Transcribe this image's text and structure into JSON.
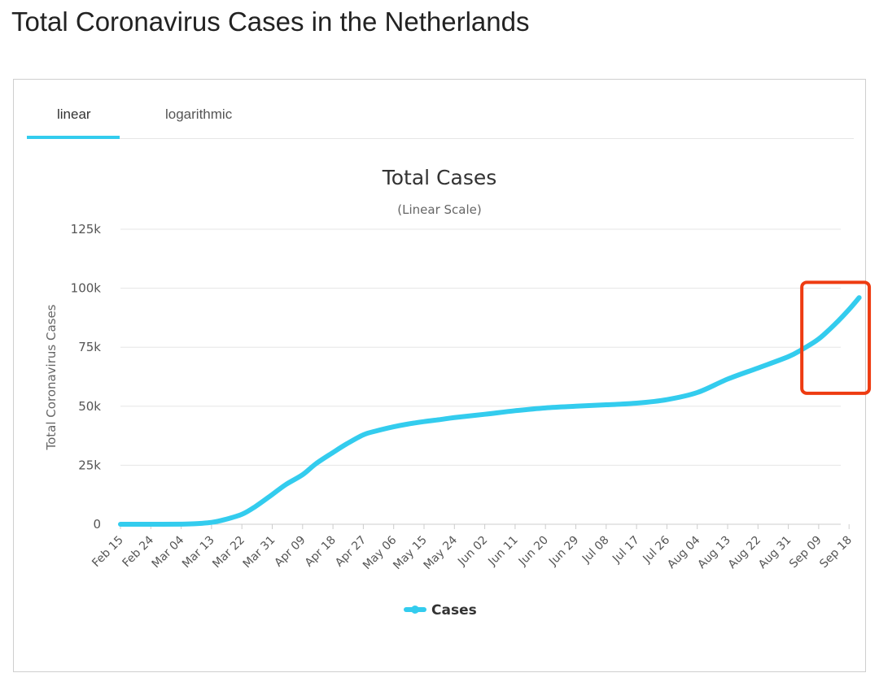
{
  "page": {
    "title": "Total Coronavirus Cases in the Netherlands"
  },
  "tabs": [
    {
      "label": "linear",
      "active": true
    },
    {
      "label": "logarithmic",
      "active": false
    }
  ],
  "colors": {
    "accent": "#33ccee",
    "line": "#33ccee",
    "highlight_box": "#ee3b11",
    "grid": "#e6e6e6",
    "text": "#333333"
  },
  "chart_data": {
    "type": "line",
    "title": "Total Cases",
    "subtitle": "(Linear Scale)",
    "ylabel": "Total Coronavirus Cases",
    "xlabel": "",
    "ylim": [
      0,
      125000
    ],
    "y_ticks": [
      0,
      25000,
      50000,
      75000,
      100000,
      125000
    ],
    "y_tick_labels": [
      "0",
      "25k",
      "50k",
      "75k",
      "100k",
      "125k"
    ],
    "x_tick_labels": [
      "Feb 15",
      "Feb 24",
      "Mar 04",
      "Mar 13",
      "Mar 22",
      "Mar 31",
      "Apr 09",
      "Apr 18",
      "Apr 27",
      "May 06",
      "May 15",
      "May 24",
      "Jun 02",
      "Jun 11",
      "Jun 20",
      "Jun 29",
      "Jul 08",
      "Jul 17",
      "Jul 26",
      "Aug 04",
      "Aug 13",
      "Aug 22",
      "Aug 31",
      "Sep 09",
      "Sep 18"
    ],
    "grid": true,
    "legend": "bottom-center",
    "series": [
      {
        "name": "Cases",
        "color": "#33ccee",
        "points": [
          [
            "Feb 15",
            0
          ],
          [
            "Feb 24",
            0
          ],
          [
            "Mar 04",
            40
          ],
          [
            "Mar 08",
            200
          ],
          [
            "Mar 13",
            800
          ],
          [
            "Mar 17",
            2000
          ],
          [
            "Mar 22",
            4200
          ],
          [
            "Mar 26",
            7500
          ],
          [
            "Mar 31",
            12600
          ],
          [
            "Apr 04",
            16800
          ],
          [
            "Apr 09",
            21000
          ],
          [
            "Apr 13",
            25700
          ],
          [
            "Apr 18",
            30400
          ],
          [
            "Apr 22",
            34000
          ],
          [
            "Apr 27",
            37900
          ],
          [
            "May 01",
            39600
          ],
          [
            "May 06",
            41300
          ],
          [
            "May 10",
            42400
          ],
          [
            "May 15",
            43500
          ],
          [
            "May 20",
            44400
          ],
          [
            "May 24",
            45200
          ],
          [
            "Jun 02",
            46600
          ],
          [
            "Jun 11",
            48100
          ],
          [
            "Jun 20",
            49300
          ],
          [
            "Jun 29",
            50000
          ],
          [
            "Jul 08",
            50600
          ],
          [
            "Jul 17",
            51300
          ],
          [
            "Jul 26",
            52800
          ],
          [
            "Aug 04",
            55800
          ],
          [
            "Aug 13",
            61500
          ],
          [
            "Aug 22",
            66200
          ],
          [
            "Aug 31",
            71000
          ],
          [
            "Sep 04",
            74000
          ],
          [
            "Sep 09",
            78500
          ],
          [
            "Sep 14",
            85000
          ],
          [
            "Sep 18",
            91000
          ],
          [
            "Sep 21",
            96000
          ]
        ]
      }
    ],
    "annotation": {
      "type": "highlight-box",
      "x_from": "Sep 04",
      "x_to": "Sep 24",
      "y_from": 55500,
      "y_to": 102500
    }
  }
}
